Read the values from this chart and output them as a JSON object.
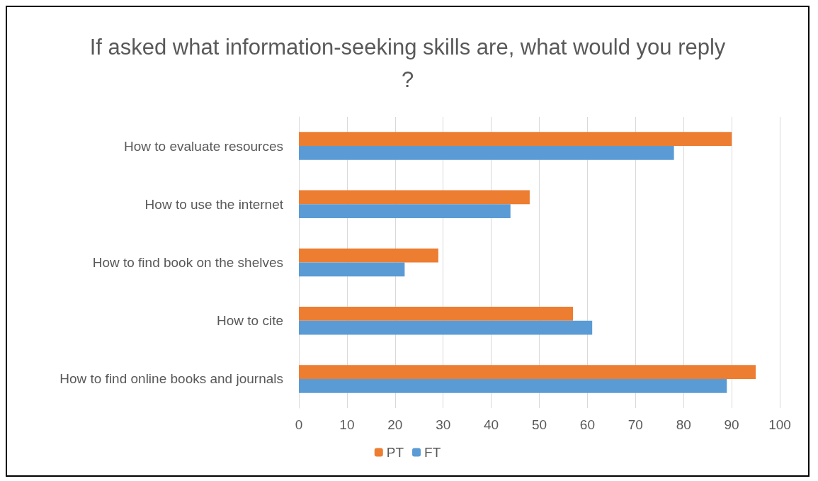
{
  "chart_data": {
    "type": "bar",
    "orientation": "horizontal",
    "title": "If asked what information-seeking skills are, what would you reply?",
    "categories": [
      "How to evaluate resources",
      "How to use the internet",
      "How to find book on the shelves",
      "How to cite",
      "How to find online books and journals"
    ],
    "series": [
      {
        "name": "PT",
        "color": "#ed7d31",
        "values": [
          90,
          48,
          29,
          57,
          95
        ]
      },
      {
        "name": "FT",
        "color": "#5b9bd5",
        "values": [
          78,
          44,
          22,
          61,
          89
        ]
      }
    ],
    "xlim": [
      0,
      100
    ],
    "xticks": [
      0,
      10,
      20,
      30,
      40,
      50,
      60,
      70,
      80,
      90,
      100
    ],
    "grid": "x",
    "legend": "bottom"
  }
}
